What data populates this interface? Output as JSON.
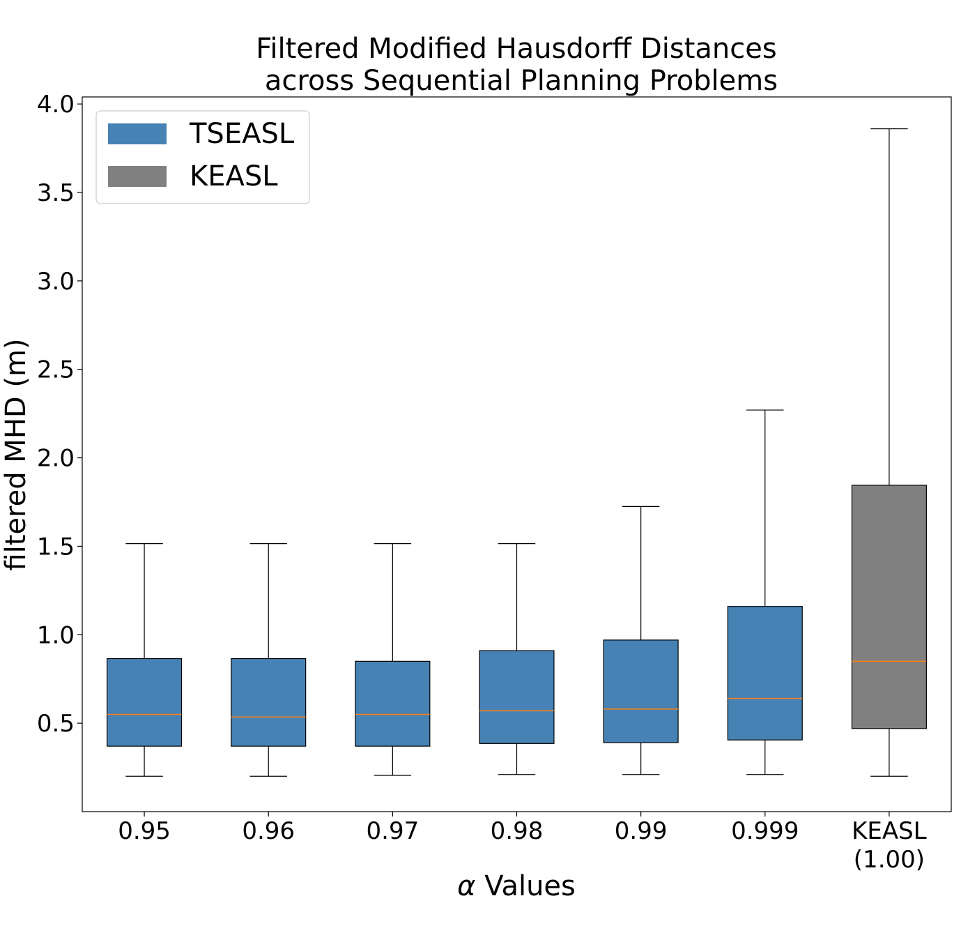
{
  "chart_data": {
    "type": "boxplot",
    "title_lines": [
      "Filtered Modified Hausdorff Distances",
      "across Sequential Planning Problems"
    ],
    "xlabel_symbol": "α",
    "xlabel_text": " Values",
    "ylabel": "filtered MHD (m)",
    "ylim": [
      0.0,
      4.04
    ],
    "yticks": [
      0.5,
      1.0,
      1.5,
      2.0,
      2.5,
      3.0,
      3.5,
      4.0
    ],
    "ytick_labels": [
      "0.5",
      "1.0",
      "1.5",
      "2.0",
      "2.5",
      "3.0",
      "3.5",
      "4.0"
    ],
    "grid": false,
    "legend": {
      "placement": "top-left",
      "entries": [
        {
          "label": "TSEASL",
          "color": "#4682b4"
        },
        {
          "label": "KEASL",
          "color": "#808080"
        }
      ]
    },
    "median_color": "#ff7f0e",
    "categories": [
      {
        "label_lines": [
          "0.95"
        ],
        "whisker_low": 0.2,
        "q1": 0.37,
        "median": 0.55,
        "q3": 0.865,
        "whisker_high": 1.515,
        "color": "#4682b4"
      },
      {
        "label_lines": [
          "0.96"
        ],
        "whisker_low": 0.2,
        "q1": 0.37,
        "median": 0.535,
        "q3": 0.865,
        "whisker_high": 1.515,
        "color": "#4682b4"
      },
      {
        "label_lines": [
          "0.97"
        ],
        "whisker_low": 0.205,
        "q1": 0.37,
        "median": 0.55,
        "q3": 0.85,
        "whisker_high": 1.515,
        "color": "#4682b4"
      },
      {
        "label_lines": [
          "0.98"
        ],
        "whisker_low": 0.21,
        "q1": 0.385,
        "median": 0.57,
        "q3": 0.91,
        "whisker_high": 1.515,
        "color": "#4682b4"
      },
      {
        "label_lines": [
          "0.99"
        ],
        "whisker_low": 0.21,
        "q1": 0.39,
        "median": 0.58,
        "q3": 0.97,
        "whisker_high": 1.725,
        "color": "#4682b4"
      },
      {
        "label_lines": [
          "0.999"
        ],
        "whisker_low": 0.21,
        "q1": 0.405,
        "median": 0.64,
        "q3": 1.16,
        "whisker_high": 2.27,
        "color": "#4682b4"
      },
      {
        "label_lines": [
          "KEASL",
          "(1.00)"
        ],
        "whisker_low": 0.2,
        "q1": 0.47,
        "median": 0.85,
        "q3": 1.845,
        "whisker_high": 3.86,
        "color": "#808080"
      }
    ]
  }
}
